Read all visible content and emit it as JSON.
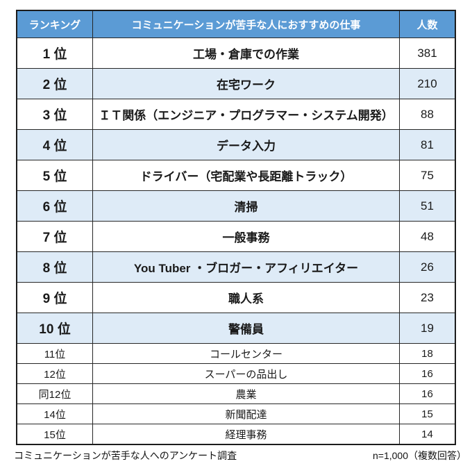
{
  "chart_data": {
    "type": "table",
    "title": "コミュニケーションが苦手な人におすすめの仕事",
    "header": {
      "rank": "ランキング",
      "job": "コミュニケーションが苦手な人におすすめの仕事",
      "count": "人数"
    },
    "rows": [
      {
        "rank": "1 位",
        "job": "工場・倉庫での作業",
        "count": 381
      },
      {
        "rank": "2 位",
        "job": "在宅ワーク",
        "count": 210
      },
      {
        "rank": "3 位",
        "job": "ＩＴ関係（エンジニア・プログラマー・システム開発）",
        "count": 88
      },
      {
        "rank": "4 位",
        "job": "データ入力",
        "count": 81
      },
      {
        "rank": "5 位",
        "job": "ドライバー（宅配業や長距離トラック）",
        "count": 75
      },
      {
        "rank": "6 位",
        "job": "清掃",
        "count": 51
      },
      {
        "rank": "7 位",
        "job": "一般事務",
        "count": 48
      },
      {
        "rank": "8 位",
        "job": "You Tuber ・ブロガー・アフィリエイター",
        "count": 26
      },
      {
        "rank": "9 位",
        "job": "職人系",
        "count": 23
      },
      {
        "rank": "10 位",
        "job": "警備員",
        "count": 19
      },
      {
        "rank": "11位",
        "job": "コールセンター",
        "count": 18
      },
      {
        "rank": "12位",
        "job": "スーパーの品出し",
        "count": 16
      },
      {
        "rank": "同12位",
        "job": "農業",
        "count": 16
      },
      {
        "rank": "14位",
        "job": "新聞配達",
        "count": 15
      },
      {
        "rank": "15位",
        "job": "経理事務",
        "count": 14
      }
    ],
    "footer_left": "コミュニケーションが苦手な人へのアンケート調査",
    "footer_right": "n=1,000（複数回答）"
  },
  "colors": {
    "header_bg": "#5B9BD5",
    "header_text": "#FFFFFF",
    "alt_row_bg": "#DEEBF7",
    "border": "#262626"
  }
}
